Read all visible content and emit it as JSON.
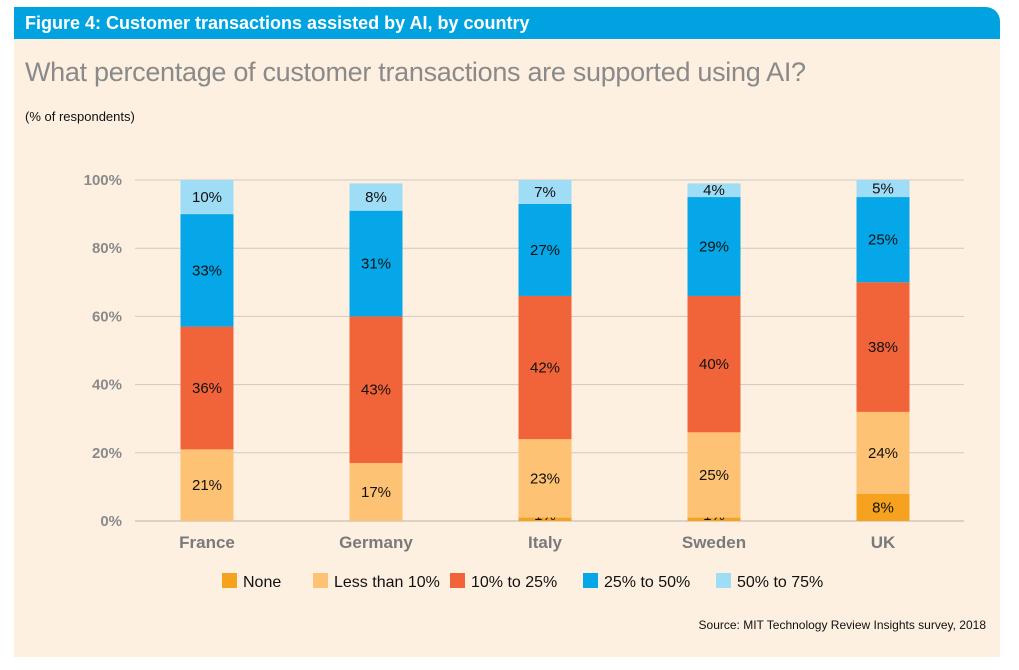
{
  "figure": {
    "header": "Figure 4: Customer transactions assisted by AI, by country",
    "question": "What percentage of customer transactions are supported using AI?",
    "unit_note": "(% of respondents)",
    "source": "Source: MIT Technology Review Insights survey, 2018"
  },
  "chart_data": {
    "type": "bar",
    "stacked": true,
    "categories": [
      "France",
      "Germany",
      "Italy",
      "Sweden",
      "UK"
    ],
    "series": [
      {
        "name": "None",
        "color": "#f6a21e",
        "values": [
          0,
          0,
          1,
          1,
          8
        ],
        "labels": [
          "",
          "",
          "1%",
          "1%",
          "8%"
        ]
      },
      {
        "name": "Less than 10%",
        "color": "#fdc273",
        "values": [
          21,
          17,
          23,
          25,
          24
        ],
        "labels": [
          "21%",
          "17%",
          "23%",
          "25%",
          "24%"
        ]
      },
      {
        "name": "10% to 25%",
        "color": "#f1643a",
        "values": [
          36,
          43,
          42,
          40,
          38
        ],
        "labels": [
          "36%",
          "43%",
          "42%",
          "40%",
          "38%"
        ]
      },
      {
        "name": "25% to 50%",
        "color": "#05a7e8",
        "values": [
          33,
          31,
          27,
          29,
          25
        ],
        "labels": [
          "33%",
          "31%",
          "27%",
          "29%",
          "25%"
        ]
      },
      {
        "name": "50% to 75%",
        "color": "#9fdcf5",
        "values": [
          10,
          8,
          7,
          4,
          5
        ],
        "labels": [
          "10%",
          "8%",
          "7%",
          "4%",
          "5%"
        ]
      }
    ],
    "yticks": [
      "0%",
      "20%",
      "40%",
      "60%",
      "80%",
      "100%"
    ],
    "ylim": [
      0,
      100
    ],
    "legend_position": "bottom",
    "grid": true
  }
}
